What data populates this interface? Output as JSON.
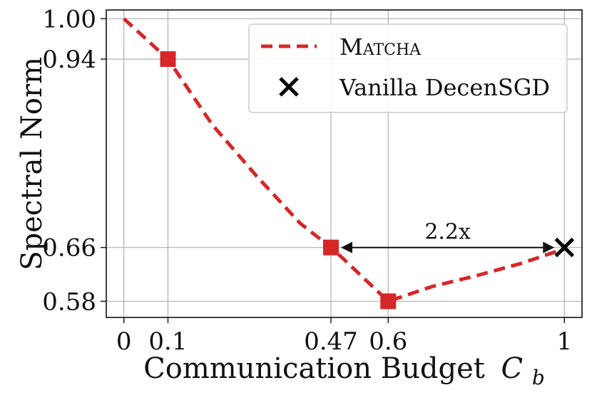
{
  "chart_data": {
    "type": "line",
    "xlabel": "Communication Budget",
    "xlabel_symbol": "C",
    "xlabel_subscript": "b",
    "ylabel": "Spectral Norm",
    "x_ticks": [
      "0",
      "0.1",
      "0.47",
      "0.6",
      "1"
    ],
    "x_tick_values": [
      0,
      0.1,
      0.47,
      0.6,
      1
    ],
    "y_ticks": [
      "1.00",
      "0.94",
      "0.66",
      "0.58"
    ],
    "y_tick_values": [
      1.0,
      0.94,
      0.66,
      0.58
    ],
    "xlim": [
      -0.04,
      1.04
    ],
    "ylim": [
      0.556,
      1.013
    ],
    "grid": true,
    "legend_position": "top-right",
    "series": [
      {
        "name": "Matcha",
        "style": "dashed",
        "color": "#d62728",
        "x": [
          0,
          0.1,
          0.2,
          0.3,
          0.4,
          0.47,
          0.5,
          0.6,
          0.7,
          0.8,
          0.9,
          1.0
        ],
        "y": [
          1.0,
          0.94,
          0.843,
          0.767,
          0.696,
          0.66,
          0.642,
          0.58,
          0.602,
          0.618,
          0.636,
          0.658
        ],
        "markers_x": [
          0.1,
          0.47,
          0.6
        ],
        "markers_y": [
          0.94,
          0.66,
          0.58
        ],
        "marker": "square"
      },
      {
        "name": "Vanilla DecenSGD",
        "color": "#000000",
        "x": [
          1.0
        ],
        "y": [
          0.66
        ],
        "marker": "x"
      }
    ],
    "annotations": [
      {
        "text": "2.2x",
        "x_from": 0.47,
        "x_to": 1.0,
        "y": 0.66,
        "arrow": "double"
      }
    ]
  }
}
